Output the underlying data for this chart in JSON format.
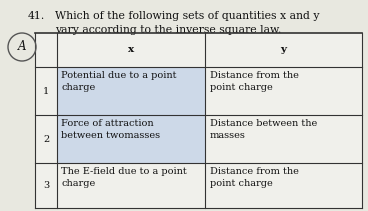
{
  "question_num": "41.",
  "question_text": "Which of the following sets of quantities x and y\nvary according to the inverse square law.",
  "answer_label": "A",
  "col_x_header": "x",
  "col_y_header": "y",
  "rows": [
    {
      "num": "1",
      "x": "Potential due to a point\ncharge",
      "y": "Distance from the\npoint charge",
      "highlight": true
    },
    {
      "num": "2",
      "x": "Force of attraction\nbetween twomasses",
      "y": "Distance between the\nmasses",
      "highlight": false
    },
    {
      "num": "3",
      "x": "The E-field due to a point\ncharge",
      "y": "Distance from the\npoint charge",
      "highlight": false
    }
  ],
  "bg_color": "#e8e8e0",
  "highlight_color": "#cdd9e8",
  "table_bg": "#f0f0eb",
  "border_color": "#333333",
  "text_color": "#111111",
  "font_size": 7.0,
  "header_font_size": 7.5,
  "question_font_size": 7.8
}
